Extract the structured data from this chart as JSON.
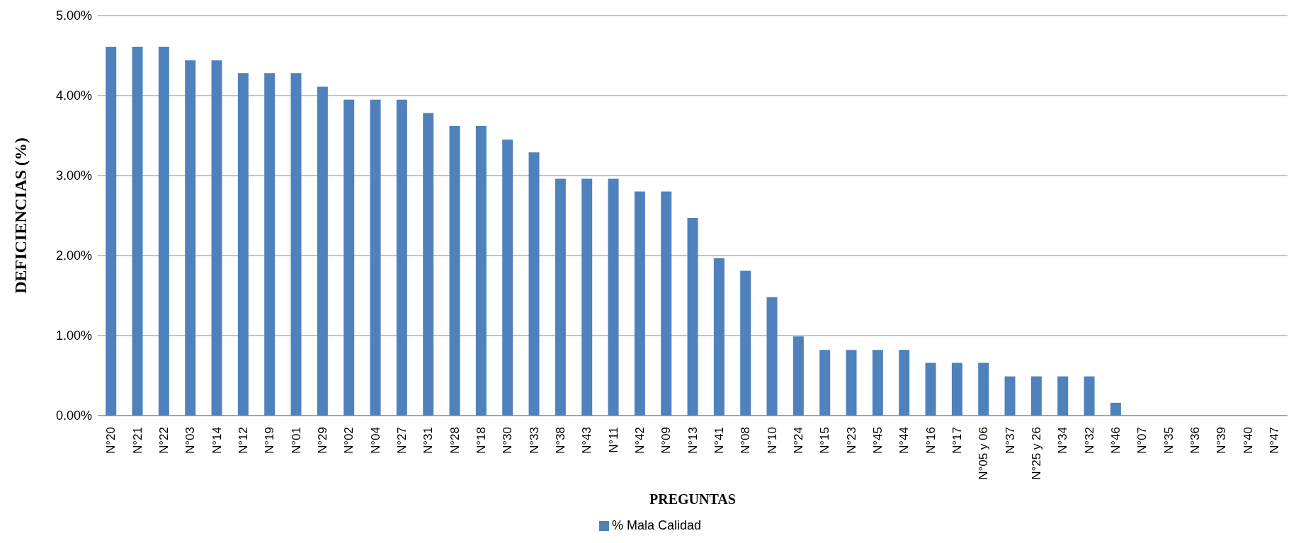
{
  "chart_data": {
    "type": "bar",
    "xlabel": "PREGUNTAS",
    "ylabel": "DEFICIENCIAS (%)",
    "categories": [
      "N°20",
      "N°21",
      "N°22",
      "N°03",
      "N°14",
      "N°12",
      "N°19",
      "N°01",
      "N°29",
      "N°02",
      "N°04",
      "N°27",
      "N°31",
      "N°28",
      "N°18",
      "N°30",
      "N°33",
      "N°38",
      "N°43",
      "N°11",
      "N°42",
      "N°09",
      "N°13",
      "N°41",
      "N°08",
      "N°10",
      "N°24",
      "N°15",
      "N°23",
      "N°45",
      "N°44",
      "N°16",
      "N°17",
      "N°05 y 06",
      "N°37",
      "N°25 y 26",
      "N°34",
      "N°32",
      "N°46",
      "N°07",
      "N°35",
      "N°36",
      "N°39",
      "N°40",
      "N°47"
    ],
    "series": [
      {
        "name": "% Mala Calidad",
        "color": "#4f81bd",
        "values": [
          4.61,
          4.61,
          4.61,
          4.44,
          4.44,
          4.28,
          4.28,
          4.28,
          4.11,
          3.95,
          3.95,
          3.95,
          3.78,
          3.62,
          3.62,
          3.45,
          3.29,
          2.96,
          2.96,
          2.96,
          2.8,
          2.8,
          2.47,
          1.97,
          1.81,
          1.48,
          0.99,
          0.82,
          0.82,
          0.82,
          0.82,
          0.66,
          0.66,
          0.66,
          0.49,
          0.49,
          0.49,
          0.49,
          0.16,
          0,
          0,
          0,
          0,
          0,
          0
        ]
      }
    ],
    "ylim": [
      0,
      5
    ],
    "yticks": [
      {
        "value": 0,
        "label": "0.00%"
      },
      {
        "value": 1,
        "label": "1.00%"
      },
      {
        "value": 2,
        "label": "2.00%"
      },
      {
        "value": 3,
        "label": "3.00%"
      },
      {
        "value": 4,
        "label": "4.00%"
      },
      {
        "value": 5,
        "label": "5.00%"
      }
    ],
    "grid": "y",
    "legend": "bottom"
  }
}
